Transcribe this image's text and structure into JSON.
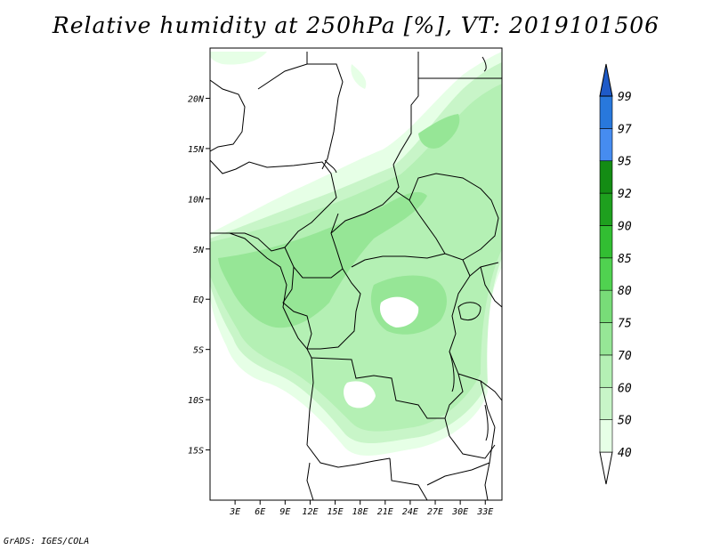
{
  "title": "Relative humidity at 250hPa [%], VT: 2019101506",
  "credit": "GrADS: IGES/COLA",
  "map": {
    "lon_range": [
      0,
      35
    ],
    "lat_range": [
      -20,
      25
    ],
    "lon_ticks": [
      "3E",
      "6E",
      "9E",
      "12E",
      "15E",
      "18E",
      "21E",
      "24E",
      "27E",
      "30E",
      "33E"
    ],
    "lat_ticks": [
      "20N",
      "15N",
      "10N",
      "5N",
      "EQ",
      "5S",
      "10S",
      "15S"
    ]
  },
  "colorbar": {
    "levels": [
      "40",
      "50",
      "60",
      "70",
      "75",
      "80",
      "85",
      "90",
      "92",
      "95",
      "97",
      "99"
    ],
    "colors": [
      "#e6ffe6",
      "#c8f5c8",
      "#b4f0b4",
      "#96e696",
      "#78dc78",
      "#50d250",
      "#32be32",
      "#1ea01e",
      "#148c14",
      "#468cf0",
      "#2878dc",
      "#1e5ac8"
    ]
  }
}
